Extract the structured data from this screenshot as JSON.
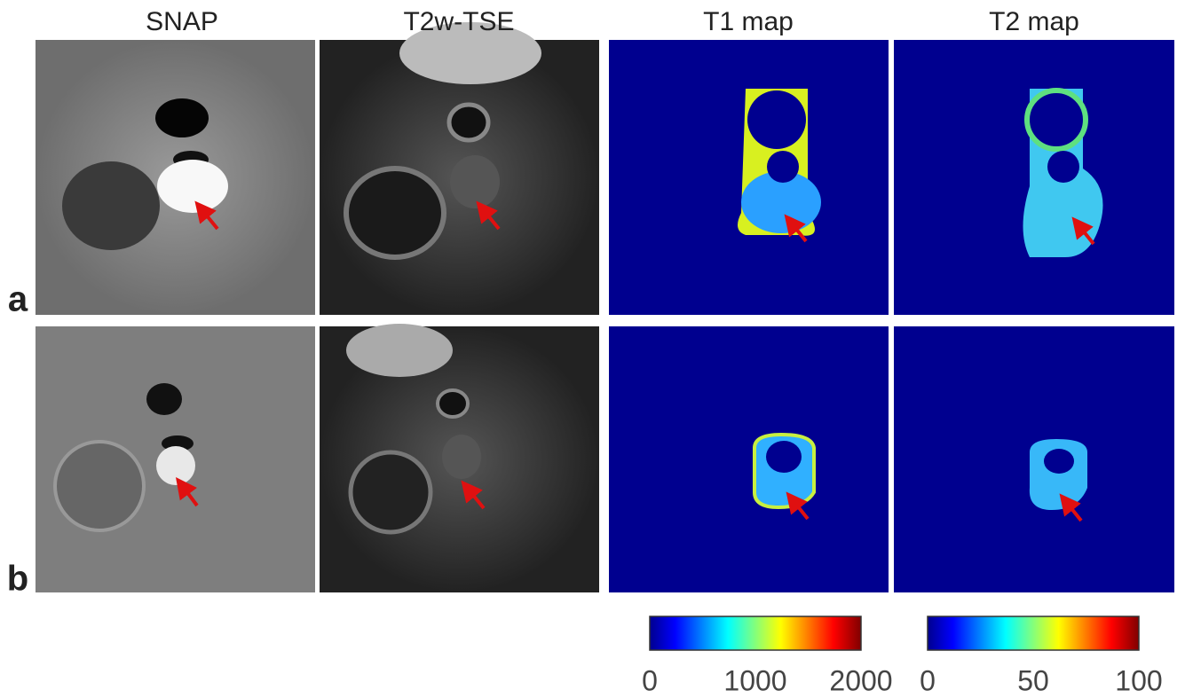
{
  "columns": [
    "SNAP",
    "T2w-TSE",
    "T1 map",
    "T2 map"
  ],
  "rows": [
    "a",
    "b"
  ],
  "colorbars": [
    {
      "ticks": [
        0,
        1000,
        2000
      ]
    },
    {
      "ticks": [
        0,
        50,
        100
      ]
    }
  ]
}
